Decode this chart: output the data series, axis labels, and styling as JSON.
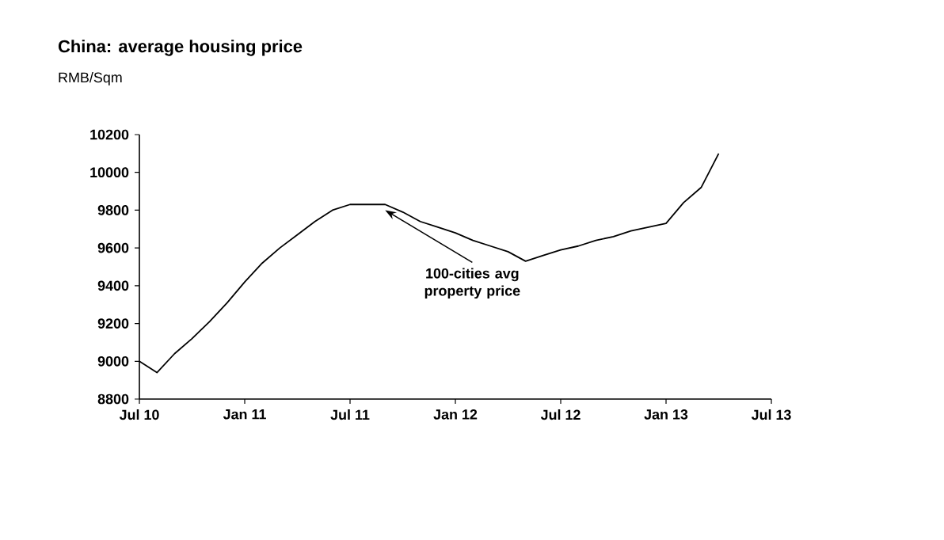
{
  "chart_data": {
    "type": "line",
    "title": "China: average housing price",
    "ylabel": "RMB/Sqm",
    "x": [
      "2010-07",
      "2010-08",
      "2010-09",
      "2010-10",
      "2010-11",
      "2010-12",
      "2011-01",
      "2011-02",
      "2011-03",
      "2011-04",
      "2011-05",
      "2011-06",
      "2011-07",
      "2011-08",
      "2011-09",
      "2011-10",
      "2011-11",
      "2011-12",
      "2012-01",
      "2012-02",
      "2012-03",
      "2012-04",
      "2012-05",
      "2012-06",
      "2012-07",
      "2012-08",
      "2012-09",
      "2012-10",
      "2012-11",
      "2012-12",
      "2013-01",
      "2013-02",
      "2013-03",
      "2013-04"
    ],
    "series": [
      {
        "color": "#000000",
        "values": [
          9000,
          8940,
          9040,
          9120,
          9210,
          9310,
          9420,
          9520,
          9600,
          9670,
          9740,
          9800,
          9830,
          9830,
          9830,
          9790,
          9740,
          9710,
          9680,
          9640,
          9610,
          9580,
          9530,
          9560,
          9590,
          9610,
          9640,
          9660,
          9690,
          9710,
          9730,
          9840,
          9920,
          10100
        ]
      }
    ],
    "xlim": [
      "2010-07",
      "2013-07"
    ],
    "xticks": [
      {
        "value": "2010-07",
        "label": "Jul 10"
      },
      {
        "value": "2011-01",
        "label": "Jan 11"
      },
      {
        "value": "2011-07",
        "label": "Jul 11"
      },
      {
        "value": "2012-01",
        "label": "Jan 12"
      },
      {
        "value": "2012-07",
        "label": "Jul 12"
      },
      {
        "value": "2013-01",
        "label": "Jan 13"
      },
      {
        "value": "2013-07",
        "label": "Jul 13"
      }
    ],
    "ylim": [
      8800,
      10200
    ],
    "yticks": [
      8800,
      9000,
      9200,
      9400,
      9600,
      9800,
      10000,
      10200
    ],
    "annotations": [
      {
        "text": "100-cities avg property price",
        "x": "2011-09",
        "y": 9800
      }
    ],
    "grid": false,
    "marker": "none",
    "line_style": "solid"
  }
}
